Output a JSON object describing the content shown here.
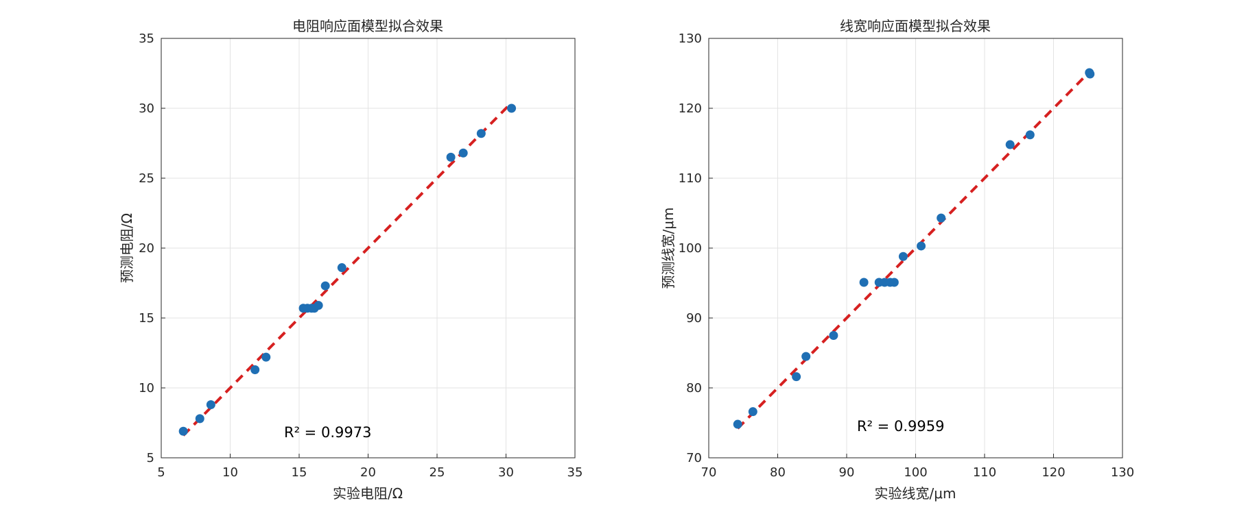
{
  "chart_data": [
    {
      "type": "scatter",
      "title": "电阻响应面模型拟合效果",
      "xlabel": "实验电阻/Ω",
      "ylabel": "预测电阻/Ω",
      "xlim": [
        5,
        35
      ],
      "ylim": [
        5,
        35
      ],
      "xticks": [
        5,
        10,
        15,
        20,
        25,
        30,
        35
      ],
      "yticks": [
        5,
        10,
        15,
        20,
        25,
        30,
        35
      ],
      "grid": true,
      "annotation": "R² = 0.9973",
      "fit_line": {
        "x": [
          6.6,
          30.4
        ],
        "y": [
          6.6,
          30.4
        ],
        "color": "#d62020",
        "style": "dashed"
      },
      "series": [
        {
          "color": "#1f6fb4",
          "x": [
            6.6,
            7.8,
            8.6,
            11.8,
            12.6,
            15.3,
            15.6,
            15.9,
            16.1,
            16.4,
            16.9,
            18.1,
            26.0,
            26.9,
            28.2,
            30.4
          ],
          "y": [
            6.9,
            7.8,
            8.8,
            11.3,
            12.2,
            15.7,
            15.7,
            15.7,
            15.7,
            15.9,
            17.3,
            18.6,
            26.5,
            26.8,
            28.2,
            30.0
          ]
        }
      ]
    },
    {
      "type": "scatter",
      "title": "线宽响应面模型拟合效果",
      "xlabel": "实验线宽/μm",
      "ylabel": "预测线宽/μm",
      "xlim": [
        70,
        130
      ],
      "ylim": [
        70,
        130
      ],
      "xticks": [
        70,
        80,
        90,
        100,
        110,
        120,
        130
      ],
      "yticks": [
        70,
        80,
        90,
        100,
        110,
        120,
        130
      ],
      "grid": true,
      "annotation": "R² = 0.9959",
      "fit_line": {
        "x": [
          74.2,
          125.3
        ],
        "y": [
          74.2,
          125.3
        ],
        "color": "#d62020",
        "style": "dashed"
      },
      "series": [
        {
          "color": "#1f6fb4",
          "x": [
            74.2,
            76.4,
            82.7,
            84.1,
            88.1,
            92.5,
            94.7,
            95.5,
            96.3,
            96.9,
            98.2,
            100.8,
            103.7,
            113.7,
            116.6,
            125.2,
            125.3
          ],
          "y": [
            74.8,
            76.6,
            81.6,
            84.5,
            87.5,
            95.1,
            95.1,
            95.1,
            95.1,
            95.1,
            98.8,
            100.3,
            104.3,
            114.8,
            116.2,
            125.1,
            124.9
          ]
        }
      ]
    }
  ]
}
